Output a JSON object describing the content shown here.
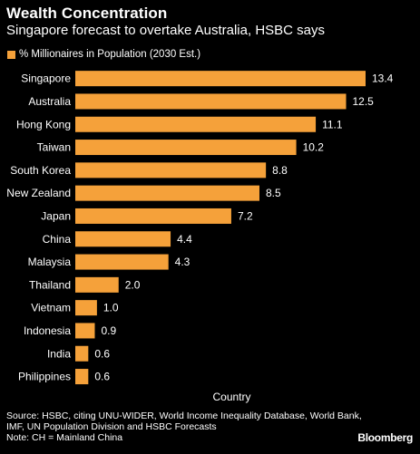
{
  "header": {
    "title": "Wealth Concentration",
    "subtitle": "Singapore forecast to overtake Australia, HSBC says"
  },
  "footer": {
    "source": "Source: HSBC, citing UNU-WIDER, World Income Inequality Database, World Bank, IMF, UN Population Division and HSBC Forecasts",
    "note": "Note: CH = Mainland China",
    "brand": "Bloomberg"
  },
  "colors": {
    "background": "#000000",
    "bar": "#f5a13a",
    "text": "#ffffff"
  },
  "chart_data": {
    "type": "bar",
    "orientation": "horizontal",
    "title": "Wealth Concentration",
    "subtitle": "Singapore forecast to overtake Australia, HSBC says",
    "xlabel": "Country",
    "ylabel": "",
    "categories": [
      "Singapore",
      "Australia",
      "Hong Kong",
      "Taiwan",
      "South Korea",
      "New Zealand",
      "Japan",
      "China",
      "Malaysia",
      "Thailand",
      "Vietnam",
      "Indonesia",
      "India",
      "Philippines"
    ],
    "series": [
      {
        "name": "% Millionaires in Population (2030 Est.)",
        "values": [
          13.4,
          12.5,
          11.1,
          10.2,
          8.8,
          8.5,
          7.2,
          4.4,
          4.3,
          2.0,
          1.0,
          0.9,
          0.6,
          0.6
        ],
        "value_labels": [
          "13.4",
          "12.5",
          "11.1",
          "10.2",
          "8.8",
          "8.5",
          "7.2",
          "4.4",
          "4.3",
          "2.0",
          "1.0",
          "0.9",
          "0.6",
          "0.6"
        ]
      }
    ],
    "xlim": [
      0,
      13.4
    ],
    "grid": false,
    "legend_position": "top-left"
  }
}
